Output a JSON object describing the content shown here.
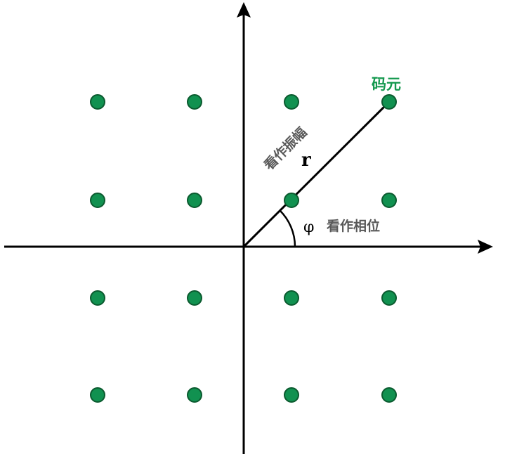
{
  "diagram": {
    "labels": {
      "symbol": "码元",
      "amplitude": "看作振幅",
      "radius_symbol": "r",
      "phase_symbol": "φ",
      "phase": "看作相位"
    },
    "colors": {
      "points": "#119150",
      "points_outline": "#0b5a2f",
      "symbol_label": "#15994f",
      "annotation_text": "#595959",
      "axes": "#000000"
    },
    "constellation": {
      "columns": [
        -3,
        -1,
        1,
        3
      ],
      "rows": [
        3,
        1,
        -1,
        -3
      ],
      "highlighted_point": [
        3,
        3
      ]
    }
  }
}
